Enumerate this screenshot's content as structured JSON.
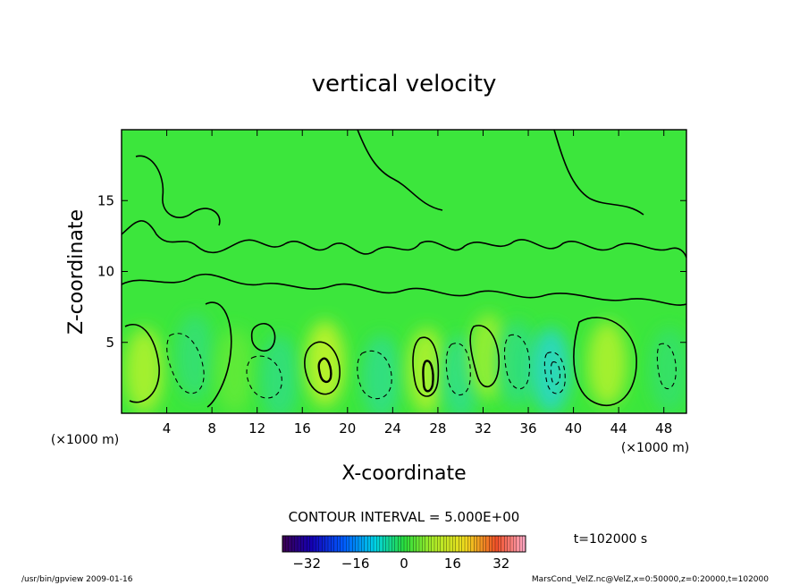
{
  "chart_data": {
    "type": "heatmap",
    "title": "vertical velocity",
    "xlabel": "X-coordinate",
    "ylabel": "Z-coordinate",
    "x_unit": "(×1000 m)",
    "y_unit": "(×1000 m)",
    "xlim": [
      0,
      50
    ],
    "ylim": [
      0,
      20
    ],
    "x_ticks": [
      4,
      8,
      12,
      16,
      20,
      24,
      28,
      32,
      36,
      40,
      44,
      48
    ],
    "y_ticks": [
      5,
      10,
      15
    ],
    "contour_interval": "CONTOUR INTERVAL = 5.000E+00",
    "time_label": "t=102000 s",
    "colorbar": {
      "range": [
        -40,
        40
      ],
      "ticks": [
        -32,
        -16,
        0,
        16,
        32
      ],
      "tick_labels": [
        "−32",
        "−16",
        "0",
        "16",
        "32"
      ]
    },
    "cells": [
      {
        "x": 2.0,
        "z": 3.0,
        "w": 12
      },
      {
        "x": 6.5,
        "z": 4.0,
        "w": -6
      },
      {
        "x": 10.0,
        "z": 3.0,
        "w": 4
      },
      {
        "x": 14.0,
        "z": 2.5,
        "w": -7
      },
      {
        "x": 18.0,
        "z": 3.5,
        "w": 14
      },
      {
        "x": 23.0,
        "z": 2.5,
        "w": -8
      },
      {
        "x": 27.0,
        "z": 3.0,
        "w": 12
      },
      {
        "x": 30.0,
        "z": 2.5,
        "w": -8
      },
      {
        "x": 32.5,
        "z": 4.0,
        "w": 10
      },
      {
        "x": 35.0,
        "z": 3.5,
        "w": -7
      },
      {
        "x": 38.0,
        "z": 3.0,
        "w": -15
      },
      {
        "x": 43.0,
        "z": 3.5,
        "w": 12
      },
      {
        "x": 48.5,
        "z": 3.0,
        "w": -5
      }
    ]
  },
  "footer": {
    "left": "/usr/bin/gpview   2009-01-16",
    "right": "MarsCond_VelZ.nc@VelZ,x=0:50000,z=0:20000,t=102000"
  }
}
